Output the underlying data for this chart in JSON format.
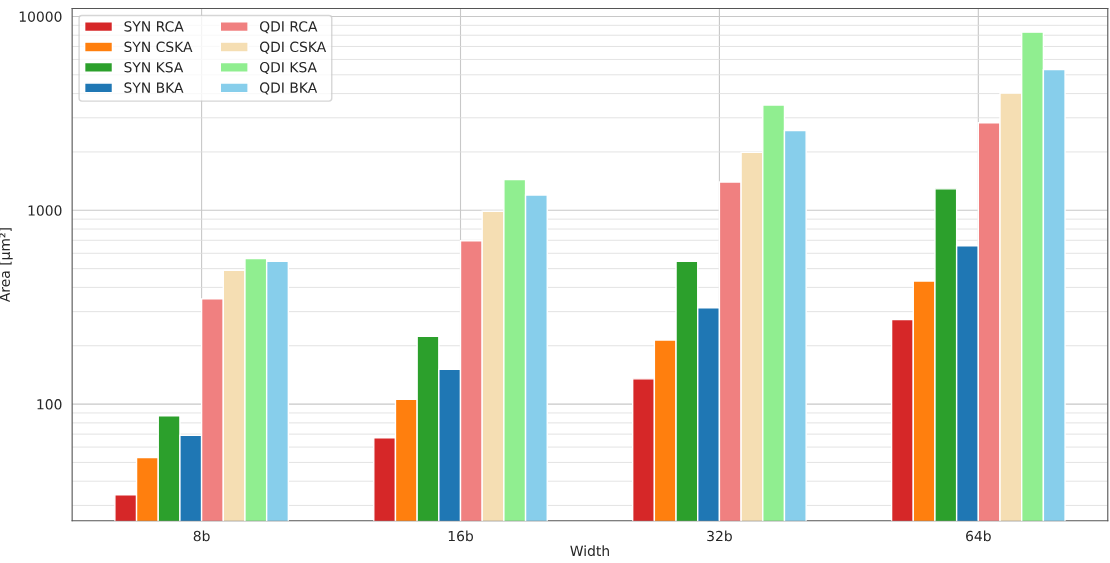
{
  "chart_data": {
    "type": "bar",
    "xlabel": "Width",
    "ylabel": "Area [µm²]",
    "categories": [
      "8b",
      "16b",
      "32b",
      "64b"
    ],
    "series": [
      {
        "name": "SYN RCA",
        "color": "#d62728",
        "values": [
          34,
          67,
          135,
          273
        ]
      },
      {
        "name": "SYN CSKA",
        "color": "#ff7f0e",
        "values": [
          53,
          106,
          214,
          431
        ]
      },
      {
        "name": "SYN KSA",
        "color": "#2ca02c",
        "values": [
          87,
          224,
          545,
          1290
        ]
      },
      {
        "name": "SYN BKA",
        "color": "#1f77b4",
        "values": [
          69,
          151,
          314,
          656
        ]
      },
      {
        "name": "QDI RCA",
        "color": "#f08080",
        "values": [
          349,
          696,
          1400,
          2830
        ]
      },
      {
        "name": "QDI CSKA",
        "color": "#f5deb3",
        "values": [
          490,
          989,
          1990,
          4020
        ]
      },
      {
        "name": "QDI KSA",
        "color": "#90ee90",
        "values": [
          563,
          1440,
          3490,
          8300
        ]
      },
      {
        "name": "QDI BKA",
        "color": "#87ceeb",
        "values": [
          545,
          1200,
          2580,
          5320
        ]
      }
    ],
    "log": "y",
    "ylim": [
      25,
      11000
    ],
    "yticks": [
      100,
      1000,
      10000
    ],
    "grid": true,
    "legend": "top left"
  }
}
